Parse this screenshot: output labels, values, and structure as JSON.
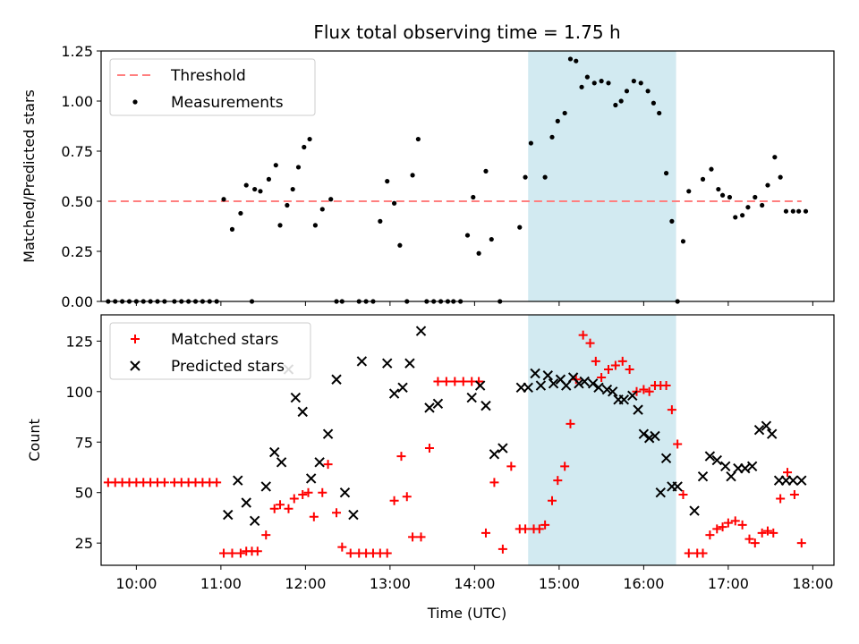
{
  "chart_data": {
    "type": "scatter",
    "title": "Flux total observing time = 1.75 h",
    "xlabel": "Time (UTC)",
    "x_ticks": [
      "10:00",
      "11:00",
      "12:00",
      "13:00",
      "14:00",
      "15:00",
      "16:00",
      "17:00",
      "18:00"
    ],
    "x_range": [
      "09:35",
      "18:15"
    ],
    "shaded_interval": [
      "14:38",
      "16:23"
    ],
    "colors": {
      "threshold": "#ff7f7f",
      "measurements": "#000000",
      "matched": "#ff0000",
      "predicted": "#000000",
      "shade": "#add8e6"
    },
    "panels": [
      {
        "id": "ratio",
        "ylabel": "Matched/Predicted stars",
        "ylim": [
          0,
          1.25
        ],
        "y_ticks": [
          "0.00",
          "0.25",
          "0.50",
          "0.75",
          "1.00",
          "1.25"
        ],
        "legend_position": "upper-left",
        "legend": [
          "Threshold",
          "Measurements"
        ],
        "series": [
          {
            "name": "Threshold",
            "kind": "dashed-line",
            "x": [
              "09:40",
              "17:52"
            ],
            "y": [
              0.5,
              0.5
            ]
          },
          {
            "name": "Measurements",
            "kind": "dot",
            "x": [
              "09:40",
              "09:45",
              "09:50",
              "09:55",
              "10:00",
              "10:05",
              "10:10",
              "10:15",
              "10:20",
              "10:27",
              "10:32",
              "10:37",
              "10:42",
              "10:47",
              "10:52",
              "10:57",
              "11:02",
              "11:08",
              "11:14",
              "11:18",
              "11:22",
              "11:24",
              "11:28",
              "11:34",
              "11:39",
              "11:42",
              "11:47",
              "11:51",
              "11:55",
              "11:59",
              "12:03",
              "12:07",
              "12:12",
              "12:18",
              "12:22",
              "12:26",
              "12:38",
              "12:43",
              "12:48",
              "12:53",
              "12:58",
              "13:03",
              "13:07",
              "13:12",
              "13:16",
              "13:20",
              "13:26",
              "13:31",
              "13:36",
              "13:41",
              "13:45",
              "13:50",
              "13:55",
              "13:59",
              "14:03",
              "14:08",
              "14:12",
              "14:18",
              "14:32",
              "14:36",
              "14:40",
              "14:50",
              "14:55",
              "14:59",
              "15:04",
              "15:08",
              "15:12",
              "15:16",
              "15:20",
              "15:25",
              "15:30",
              "15:35",
              "15:40",
              "15:44",
              "15:48",
              "15:53",
              "15:58",
              "16:03",
              "16:07",
              "16:11",
              "16:16",
              "16:20",
              "16:24",
              "16:28",
              "16:32",
              "16:42",
              "16:48",
              "16:53",
              "16:56",
              "17:01",
              "17:05",
              "17:10",
              "17:14",
              "17:19",
              "17:24",
              "17:28",
              "17:33",
              "17:37",
              "17:41",
              "17:46",
              "17:50",
              "17:55"
            ],
            "y": [
              0,
              0,
              0,
              0,
              0,
              0,
              0,
              0,
              0,
              0,
              0,
              0,
              0,
              0,
              0,
              0,
              0.51,
              0.36,
              0.44,
              0.58,
              0,
              0.56,
              0.55,
              0.61,
              0.68,
              0.38,
              0.48,
              0.56,
              0.67,
              0.77,
              0.81,
              0.38,
              0.46,
              0.51,
              0,
              0,
              0,
              0,
              0,
              0.4,
              0.6,
              0.49,
              0.28,
              0,
              0.63,
              0.81,
              0,
              0,
              0,
              0,
              0,
              0,
              0.33,
              0.52,
              0.24,
              0.65,
              0.31,
              0,
              0.37,
              0.62,
              0.79,
              0.62,
              0.82,
              0.9,
              0.94,
              1.21,
              1.2,
              1.07,
              1.12,
              1.09,
              1.1,
              1.09,
              0.98,
              1.0,
              1.05,
              1.1,
              1.09,
              1.05,
              0.99,
              0.94,
              0.64,
              0.4,
              0,
              0.3,
              0.55,
              0.61,
              0.66,
              0.56,
              0.53,
              0.52,
              0.42,
              0.43,
              0.47,
              0.52,
              0.48,
              0.58,
              0.72,
              0.62,
              0.45,
              0.45,
              0.45,
              0.45
            ]
          }
        ]
      },
      {
        "id": "counts",
        "ylabel": "Count",
        "ylim": [
          14,
          138
        ],
        "y_ticks": [
          "25",
          "50",
          "75",
          "100",
          "125"
        ],
        "legend_position": "upper-left",
        "legend": [
          "Matched stars",
          "Predicted stars"
        ],
        "series": [
          {
            "name": "Matched stars",
            "kind": "plus",
            "x": [
              "09:40",
              "09:45",
              "09:50",
              "09:55",
              "10:00",
              "10:05",
              "10:10",
              "10:15",
              "10:20",
              "10:27",
              "10:32",
              "10:37",
              "10:42",
              "10:47",
              "10:52",
              "10:57",
              "11:02",
              "11:08",
              "11:14",
              "11:18",
              "11:22",
              "11:26",
              "11:32",
              "11:38",
              "11:42",
              "11:48",
              "11:52",
              "11:58",
              "12:02",
              "12:06",
              "12:12",
              "12:16",
              "12:22",
              "12:26",
              "12:32",
              "12:38",
              "12:43",
              "12:48",
              "12:53",
              "12:58",
              "13:03",
              "13:08",
              "13:12",
              "13:16",
              "13:22",
              "13:28",
              "13:34",
              "13:40",
              "13:46",
              "13:52",
              "13:58",
              "14:03",
              "14:08",
              "14:14",
              "14:20",
              "14:26",
              "14:32",
              "14:36",
              "14:42",
              "14:46",
              "14:50",
              "14:55",
              "14:59",
              "15:04",
              "15:08",
              "15:12",
              "15:17",
              "15:22",
              "15:26",
              "15:30",
              "15:35",
              "15:40",
              "15:45",
              "15:50",
              "15:55",
              "16:00",
              "16:04",
              "16:08",
              "16:12",
              "16:16",
              "16:20",
              "16:24",
              "16:28",
              "16:32",
              "16:38",
              "16:42",
              "16:47",
              "16:52",
              "16:56",
              "17:00",
              "17:05",
              "17:10",
              "17:15",
              "17:19",
              "17:24",
              "17:28",
              "17:32",
              "17:37",
              "17:42",
              "17:47",
              "17:52"
            ],
            "y": [
              55,
              55,
              55,
              55,
              55,
              55,
              55,
              55,
              55,
              55,
              55,
              55,
              55,
              55,
              55,
              55,
              20,
              20,
              20,
              21,
              21,
              21,
              29,
              42,
              44,
              42,
              47,
              49,
              50,
              38,
              50,
              64,
              40,
              23,
              20,
              20,
              20,
              20,
              20,
              20,
              46,
              68,
              48,
              28,
              28,
              72,
              105,
              105,
              105,
              105,
              105,
              105,
              30,
              55,
              22,
              63,
              32,
              32,
              32,
              32,
              34,
              46,
              56,
              63,
              84,
              106,
              128,
              124,
              115,
              107,
              111,
              113,
              115,
              111,
              100,
              101,
              100,
              103,
              103,
              103,
              91,
              74,
              49,
              20,
              20,
              20,
              29,
              32,
              33,
              35,
              36,
              34,
              27,
              25,
              30,
              31,
              30,
              47,
              60,
              49,
              25
            ]
          },
          {
            "name": "Predicted stars",
            "kind": "x",
            "x": [
              "11:05",
              "11:12",
              "11:18",
              "11:24",
              "11:32",
              "11:38",
              "11:43",
              "11:48",
              "11:53",
              "11:58",
              "12:04",
              "12:10",
              "12:16",
              "12:22",
              "12:28",
              "12:34",
              "12:40",
              "12:58",
              "13:03",
              "13:09",
              "13:14",
              "13:22",
              "13:28",
              "13:34",
              "13:58",
              "14:04",
              "14:08",
              "14:14",
              "14:20",
              "14:33",
              "14:38",
              "14:43",
              "14:47",
              "14:52",
              "14:56",
              "15:01",
              "15:05",
              "15:10",
              "15:14",
              "15:18",
              "15:24",
              "15:28",
              "15:34",
              "15:38",
              "15:42",
              "15:46",
              "15:52",
              "15:56",
              "16:00",
              "16:04",
              "16:08",
              "16:12",
              "16:16",
              "16:20",
              "16:24",
              "16:36",
              "16:42",
              "16:47",
              "16:52",
              "16:58",
              "17:02",
              "17:07",
              "17:12",
              "17:17",
              "17:22",
              "17:27",
              "17:31",
              "17:36",
              "17:41",
              "17:46",
              "17:52"
            ],
            "y": [
              39,
              56,
              45,
              36,
              53,
              70,
              65,
              111,
              97,
              90,
              57,
              65,
              79,
              106,
              50,
              39,
              115,
              114,
              99,
              102,
              114,
              130,
              92,
              94,
              97,
              103,
              93,
              69,
              72,
              102,
              102,
              109,
              103,
              108,
              104,
              106,
              103,
              107,
              104,
              105,
              104,
              102,
              101,
              100,
              96,
              96,
              98,
              91,
              79,
              77,
              78,
              50,
              67,
              53,
              53,
              41,
              58,
              68,
              66,
              63,
              58,
              62,
              62,
              63,
              81,
              83,
              79,
              56,
              56,
              56,
              56
            ]
          }
        ]
      }
    ]
  }
}
